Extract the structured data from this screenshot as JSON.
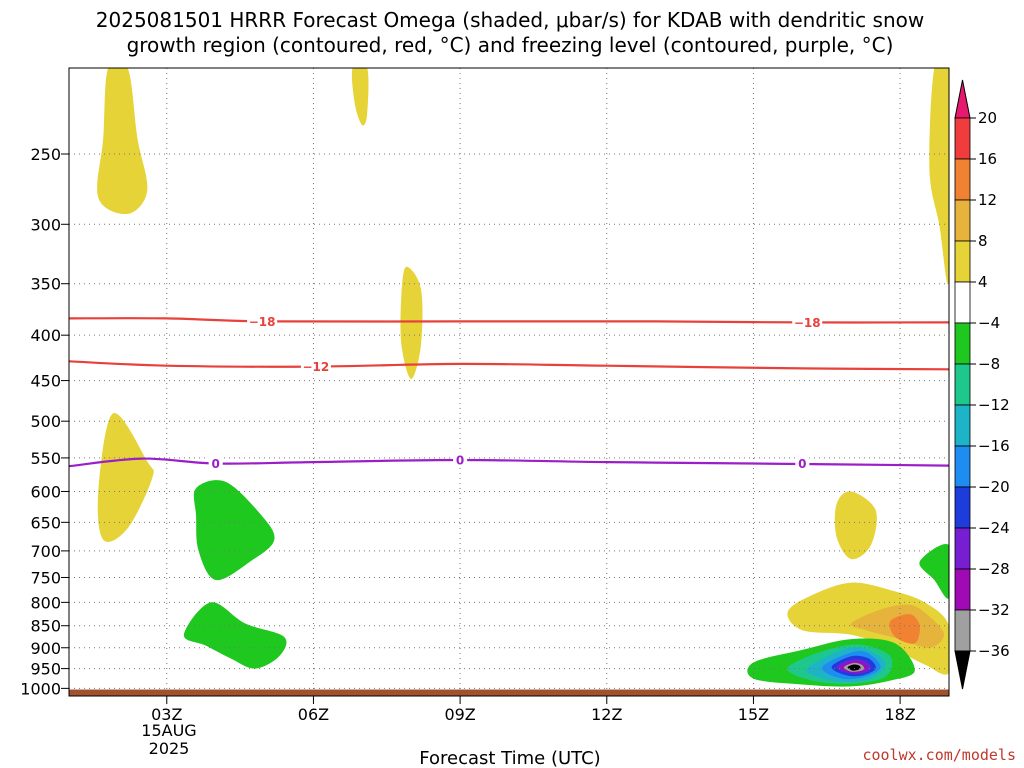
{
  "title_line1": "2025081501 HRRR Forecast Omega (shaded, μbar/s) for KDAB with dendritic snow",
  "title_line2": "growth region (contoured, red, °C) and freezing level (contoured, purple, °C)",
  "credit": "coolwx.com/models",
  "chart_data": {
    "type": "time-height cross section",
    "xlabel": "Forecast Time (UTC)",
    "date_labels": [
      "15AUG",
      "2025"
    ],
    "x_ticks": [
      "03Z",
      "06Z",
      "09Z",
      "12Z",
      "15Z",
      "18Z"
    ],
    "x_range_hours": [
      1,
      19
    ],
    "y_ticks": [
      250,
      300,
      350,
      400,
      450,
      500,
      550,
      600,
      650,
      700,
      750,
      800,
      850,
      900,
      950,
      1000
    ],
    "y_range_hPa": [
      200,
      1020
    ],
    "y_scale": "log-pressure",
    "grid": true,
    "colorbar": {
      "levels": [
        "20",
        "16",
        "12",
        "8",
        "4",
        "−4",
        "−8",
        "−12",
        "−16",
        "−20",
        "−24",
        "−28",
        "−32",
        "−36"
      ],
      "colors": [
        "#e8186f",
        "#f03c3c",
        "#f08232",
        "#e6b43c",
        "#e6d337",
        "#ffffff",
        "#1ec81e",
        "#1ec88c",
        "#1eb4c8",
        "#1e8cf0",
        "#1e3cdc",
        "#781ed2",
        "#a00ab4",
        "#a0a0a0",
        "#000000"
      ]
    },
    "contours": [
      {
        "name": "dendritic growth",
        "label": "−18",
        "color": "#e8413c",
        "points": [
          [
            1,
            383
          ],
          [
            3,
            383
          ],
          [
            5,
            386
          ],
          [
            9,
            386
          ],
          [
            13,
            386
          ],
          [
            16,
            387
          ],
          [
            19,
            387
          ]
        ]
      },
      {
        "name": "dendritic growth",
        "label": "−12",
        "color": "#e8413c",
        "points": [
          [
            1,
            428
          ],
          [
            3,
            433
          ],
          [
            6,
            434
          ],
          [
            9,
            431
          ],
          [
            12,
            433
          ],
          [
            16,
            436
          ],
          [
            19,
            437
          ]
        ]
      },
      {
        "name": "freezing level",
        "label": "0",
        "color": "#9b1ec8",
        "points": [
          [
            1,
            562
          ],
          [
            2.5,
            551
          ],
          [
            4,
            558
          ],
          [
            6,
            556
          ],
          [
            9,
            553
          ],
          [
            12,
            556
          ],
          [
            15,
            558
          ],
          [
            19,
            561
          ]
        ]
      }
    ],
    "contour_label_positions": [
      {
        "label": "−18",
        "hour": 4.95,
        "hPa": 386,
        "color": "#e8413c"
      },
      {
        "label": "−18",
        "hour": 16.1,
        "hPa": 387,
        "color": "#e8413c"
      },
      {
        "label": "−12",
        "hour": 6.05,
        "hPa": 434,
        "color": "#e8413c"
      },
      {
        "label": "0",
        "hour": 4.0,
        "hPa": 558,
        "color": "#9b1ec8"
      },
      {
        "label": "0",
        "hour": 9.0,
        "hPa": 553,
        "color": "#9b1ec8"
      },
      {
        "label": "0",
        "hour": 16.0,
        "hPa": 558,
        "color": "#9b1ec8"
      }
    ],
    "omega_regions": [
      {
        "value_range": "4 to 8",
        "color": "#e6d337",
        "outline": [
          [
            1.8,
            200
          ],
          [
            2.2,
            200
          ],
          [
            2.4,
            240
          ],
          [
            2.6,
            275
          ],
          [
            2.2,
            292
          ],
          [
            1.6,
            280
          ],
          [
            1.7,
            240
          ]
        ]
      },
      {
        "value_range": "4 to 8",
        "color": "#e6d337",
        "outline": [
          [
            6.8,
            200
          ],
          [
            7.1,
            200
          ],
          [
            7.1,
            225
          ],
          [
            7.0,
            232
          ],
          [
            6.85,
            220
          ]
        ]
      },
      {
        "value_range": "4 to 8",
        "color": "#e6d337",
        "outline": [
          [
            7.9,
            335
          ],
          [
            8.2,
            355
          ],
          [
            8.2,
            410
          ],
          [
            8.0,
            448
          ],
          [
            7.8,
            410
          ],
          [
            7.8,
            360
          ]
        ]
      },
      {
        "value_range": "4 to 8",
        "color": "#e6d337",
        "outline": [
          [
            1.9,
            490
          ],
          [
            2.6,
            555
          ],
          [
            2.7,
            580
          ],
          [
            2.2,
            660
          ],
          [
            1.7,
            680
          ],
          [
            1.6,
            600
          ]
        ]
      },
      {
        "value_range": "4 to 8",
        "color": "#e6d337",
        "outline": [
          [
            18.6,
            260
          ],
          [
            18.7,
            200
          ],
          [
            19.0,
            200
          ],
          [
            19.0,
            345
          ],
          [
            18.8,
            300
          ]
        ]
      },
      {
        "value_range": "4 to 8",
        "color": "#e6d337",
        "outline": [
          [
            17.0,
            600
          ],
          [
            17.5,
            630
          ],
          [
            17.4,
            690
          ],
          [
            17.0,
            715
          ],
          [
            16.7,
            675
          ],
          [
            16.7,
            620
          ]
        ]
      },
      {
        "value_range": "4 to 8",
        "color": "#e6d337",
        "outline": [
          [
            15.7,
            820
          ],
          [
            16.2,
            785
          ],
          [
            17.0,
            760
          ],
          [
            17.8,
            775
          ],
          [
            18.5,
            800
          ],
          [
            19.0,
            850
          ],
          [
            19.0,
            960
          ],
          [
            18.5,
            940
          ],
          [
            17.8,
            900
          ],
          [
            17.0,
            870
          ],
          [
            16.0,
            860
          ]
        ]
      },
      {
        "value_range": "8 to 12",
        "color": "#e6b43c",
        "outline": [
          [
            17.0,
            845
          ],
          [
            17.6,
            815
          ],
          [
            18.2,
            805
          ],
          [
            18.6,
            830
          ],
          [
            18.9,
            870
          ],
          [
            18.6,
            900
          ],
          [
            18.0,
            880
          ],
          [
            17.3,
            860
          ]
        ]
      },
      {
        "value_range": "12 to 16",
        "color": "#f08232",
        "outline": [
          [
            17.8,
            840
          ],
          [
            18.2,
            825
          ],
          [
            18.4,
            850
          ],
          [
            18.3,
            890
          ],
          [
            17.9,
            875
          ]
        ]
      },
      {
        "value_range": "-4 to -8",
        "color": "#1ec81e",
        "outline": [
          [
            3.6,
            595
          ],
          [
            4.2,
            585
          ],
          [
            4.9,
            635
          ],
          [
            5.2,
            680
          ],
          [
            4.7,
            720
          ],
          [
            4.0,
            755
          ],
          [
            3.65,
            700
          ],
          [
            3.6,
            640
          ]
        ]
      },
      {
        "value_range": "-4 to -8",
        "color": "#1ec81e",
        "outline": [
          [
            3.35,
            870
          ],
          [
            3.9,
            800
          ],
          [
            4.6,
            845
          ],
          [
            5.4,
            875
          ],
          [
            5.3,
            920
          ],
          [
            4.8,
            950
          ],
          [
            4.3,
            925
          ],
          [
            3.8,
            895
          ]
        ]
      },
      {
        "value_range": "-4 to -8",
        "color": "#1ec81e",
        "outline": [
          [
            18.4,
            720
          ],
          [
            19.0,
            690
          ],
          [
            19.0,
            790
          ],
          [
            18.7,
            755
          ]
        ]
      },
      {
        "value_range": "-4 to -8",
        "color": "#1ec81e",
        "outline": [
          [
            15.0,
            935
          ],
          [
            16.0,
            905
          ],
          [
            17.0,
            880
          ],
          [
            17.9,
            890
          ],
          [
            18.3,
            955
          ],
          [
            17.8,
            980
          ],
          [
            17.0,
            995
          ],
          [
            16.0,
            990
          ],
          [
            15.0,
            975
          ]
        ]
      },
      {
        "value_range": "-8 to -12",
        "color": "#1ec88c",
        "outline": [
          [
            15.7,
            948
          ],
          [
            16.5,
            905
          ],
          [
            17.2,
            893
          ],
          [
            17.8,
            920
          ],
          [
            17.7,
            970
          ],
          [
            17.0,
            988
          ],
          [
            16.2,
            980
          ]
        ]
      },
      {
        "value_range": "-12 to -16",
        "color": "#1eb4c8",
        "outline": [
          [
            16.1,
            950
          ],
          [
            16.7,
            910
          ],
          [
            17.2,
            900
          ],
          [
            17.7,
            935
          ],
          [
            17.4,
            975
          ],
          [
            16.8,
            983
          ],
          [
            16.3,
            970
          ]
        ]
      },
      {
        "value_range": "-16 to -20",
        "color": "#1e8cf0",
        "outline": [
          [
            16.4,
            948
          ],
          [
            16.9,
            915
          ],
          [
            17.3,
            910
          ],
          [
            17.6,
            945
          ],
          [
            17.3,
            970
          ],
          [
            16.8,
            975
          ]
        ]
      },
      {
        "value_range": "-20 to -24",
        "color": "#1e3cdc",
        "outline": [
          [
            16.6,
            945
          ],
          [
            17.0,
            920
          ],
          [
            17.35,
            925
          ],
          [
            17.5,
            950
          ],
          [
            17.2,
            968
          ],
          [
            16.85,
            965
          ]
        ]
      },
      {
        "value_range": "-24 to -28",
        "color": "#781ed2",
        "outline": [
          [
            16.7,
            945
          ],
          [
            17.0,
            928
          ],
          [
            17.3,
            932
          ],
          [
            17.4,
            952
          ],
          [
            17.15,
            963
          ],
          [
            16.85,
            958
          ]
        ]
      },
      {
        "value_range": "-28 to -32",
        "color": "#a00ab4",
        "outline": [
          [
            16.8,
            945
          ],
          [
            17.05,
            933
          ],
          [
            17.25,
            938
          ],
          [
            17.3,
            952
          ],
          [
            17.1,
            960
          ],
          [
            16.9,
            955
          ]
        ]
      },
      {
        "value_range": "-32 to -36",
        "color": "#a0a0a0",
        "outline": [
          [
            16.85,
            946
          ],
          [
            17.05,
            936
          ],
          [
            17.22,
            941
          ],
          [
            17.25,
            953
          ],
          [
            17.05,
            958
          ],
          [
            16.92,
            954
          ]
        ]
      },
      {
        "value_range": "< -36",
        "color": "#000000",
        "outline": [
          [
            16.93,
            946
          ],
          [
            17.05,
            940
          ],
          [
            17.17,
            943
          ],
          [
            17.18,
            951
          ],
          [
            17.05,
            955
          ],
          [
            16.97,
            952
          ]
        ]
      }
    ],
    "ground": {
      "color": "#a0522d",
      "from_hPa": 1003,
      "to_hPa": 1020
    }
  }
}
